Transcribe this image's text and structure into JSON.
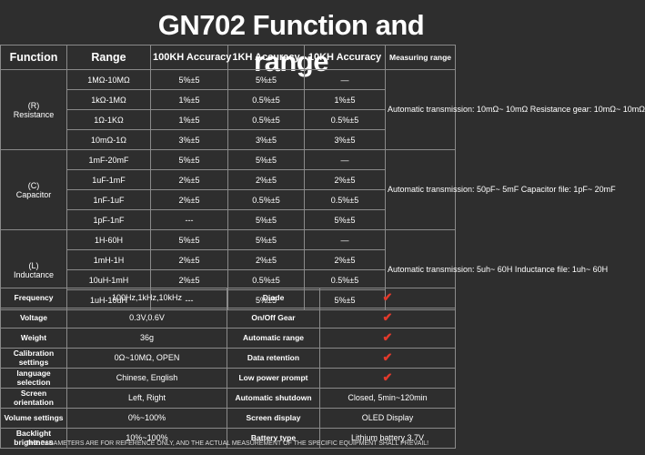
{
  "title": "GN702 Function and range",
  "headers": {
    "function": "Function",
    "range": "Range",
    "acc100k": "100KH Accuracy",
    "acc1k": "1KH Accuracy",
    "acc10k": "10KH Accuracy",
    "measuring_range": "Measuring range"
  },
  "resistance": {
    "label": "(R)\nResistance",
    "note": "Automatic transmission: 10mΩ~ 10mΩ Resistance gear: 10mΩ~ 10mΩ",
    "rows": [
      [
        "1MΩ-10MΩ",
        "5%±5",
        "5%±5",
        "—"
      ],
      [
        "1kΩ-1MΩ",
        "1%±5",
        "0.5%±5",
        "1%±5"
      ],
      [
        "1Ω-1KΩ",
        "1%±5",
        "0.5%±5",
        "0.5%±5"
      ],
      [
        "10mΩ-1Ω",
        "3%±5",
        "3%±5",
        "3%±5"
      ]
    ]
  },
  "capacitor": {
    "label": "(C)\nCapacitor",
    "note": "Automatic transmission: 50pF~ 5mF Capacitor file: 1pF~ 20mF",
    "rows": [
      [
        "1mF-20mF",
        "5%±5",
        "5%±5",
        "—"
      ],
      [
        "1uF-1mF",
        "2%±5",
        "2%±5",
        "2%±5"
      ],
      [
        "1nF-1uF",
        "2%±5",
        "0.5%±5",
        "0.5%±5"
      ],
      [
        "1pF-1nF",
        "---",
        "5%±5",
        "5%±5"
      ]
    ]
  },
  "inductance": {
    "label": "(L)\nInductance",
    "note": "Automatic transmission: 5uh~ 60H Inductance file: 1uh~ 60H",
    "rows": [
      [
        "1H-60H",
        "5%±5",
        "5%±5",
        "—"
      ],
      [
        "1mH-1H",
        "2%±5",
        "2%±5",
        "2%±5"
      ],
      [
        "10uH-1mH",
        "2%±5",
        "0.5%±5",
        "0.5%±5"
      ],
      [
        "1uH-10uH",
        "---",
        "5%±5",
        "5%±5"
      ]
    ]
  },
  "bottom": [
    {
      "l1": "Frequency",
      "v1": "100Hz,1kHz,10kHz",
      "l2": "Diode",
      "v2": "",
      "check": true
    },
    {
      "l1": "Voltage",
      "v1": "0.3V,0.6V",
      "l2": "On/Off Gear",
      "v2": "",
      "check": true
    },
    {
      "l1": "Weight",
      "v1": "36g",
      "l2": "Automatic range",
      "v2": "",
      "check": true
    },
    {
      "l1": "Calibration settings",
      "v1": "0Ω~10MΩ,  OPEN",
      "l2": "Data retention",
      "v2": "",
      "check": true
    },
    {
      "l1": "language selection",
      "v1": "Chinese, English",
      "l2": "Low power prompt",
      "v2": "",
      "check": true
    },
    {
      "l1": "Screen orientation",
      "v1": "Left, Right",
      "l2": "Automatic shutdown",
      "v2": "Closed, 5min~120min",
      "check": false
    },
    {
      "l1": "Volume settings",
      "v1": "0%~100%",
      "l2": "Screen display",
      "v2": "OLED Display",
      "check": false
    },
    {
      "l1": "Backlight brightness",
      "v1": "10%~100%",
      "l2": "Battery type",
      "v2": "Lithium battery 3.7V",
      "check": false
    }
  ],
  "check_mark": "✔",
  "footer": "THE PARAMETERS ARE FOR REFERENCE ONLY, AND THE ACTUAL MEASUREMENT OF THE SPECIFIC EQUIPMENT SHALL PREVAIL!",
  "colors": {
    "background": "#2e2e2e",
    "check": "#e23a2c",
    "border": "#8a8a8a"
  }
}
